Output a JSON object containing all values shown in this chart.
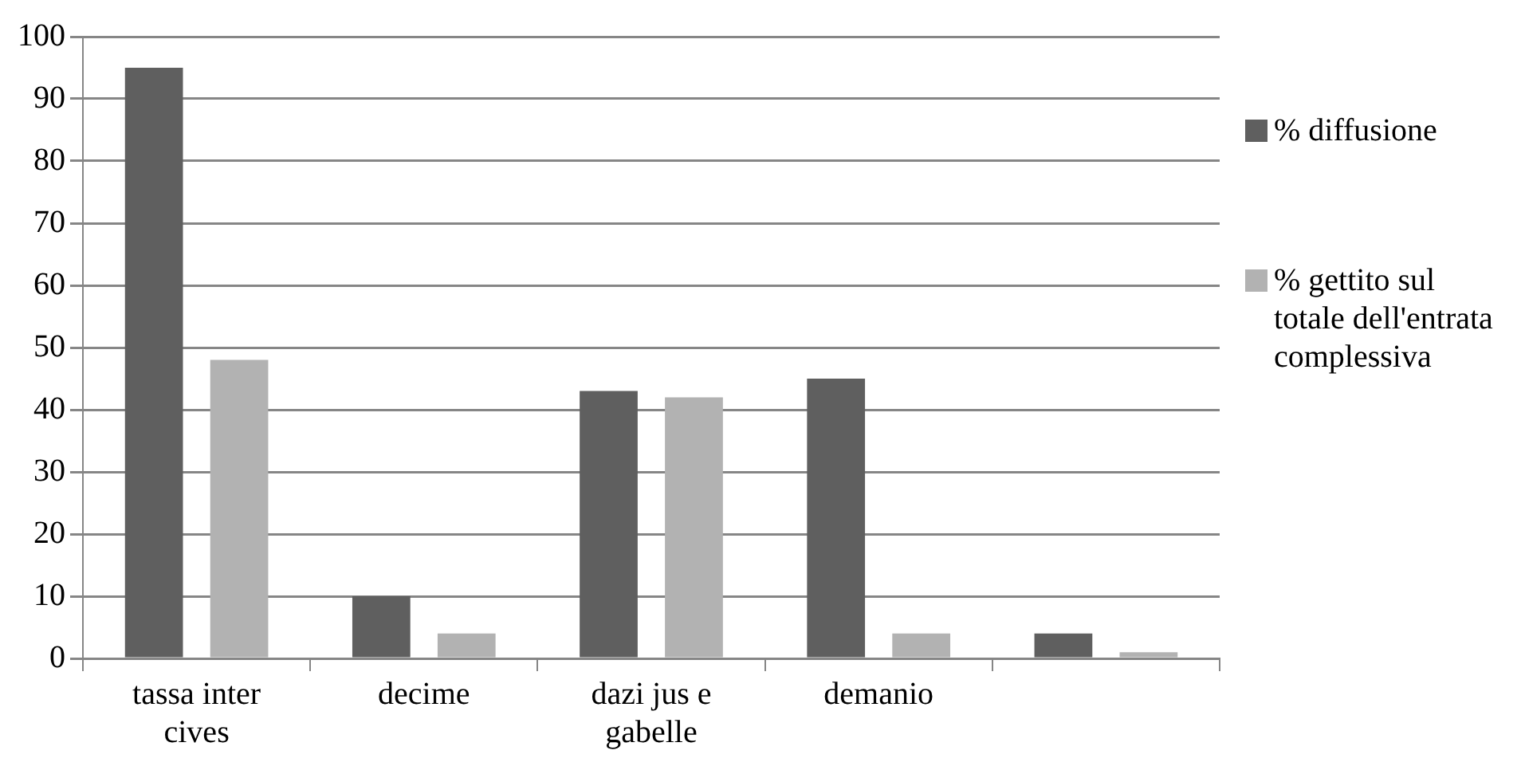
{
  "chart_data": {
    "type": "bar",
    "categories": [
      "tassa inter cives",
      "decime",
      "dazi jus e gabelle",
      "demanio",
      null
    ],
    "series": [
      {
        "name": "% diffusione",
        "color": "#5f5f5f",
        "values": [
          95,
          10,
          43,
          45,
          4
        ]
      },
      {
        "name": "% gettito sul totale dell'entrata complessiva",
        "color": "#b2b2b2",
        "values": [
          48,
          4,
          42,
          4,
          1
        ]
      }
    ],
    "ylim": [
      0,
      100
    ],
    "yticks": [
      0,
      10,
      20,
      30,
      40,
      50,
      60,
      70,
      80,
      90,
      100
    ],
    "grid": "y",
    "legend": "right"
  }
}
